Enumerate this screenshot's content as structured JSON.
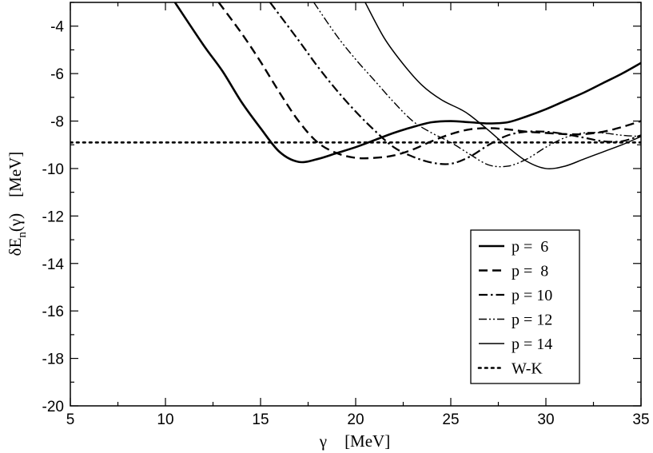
{
  "chart_data": {
    "type": "line",
    "title": "",
    "xlabel": {
      "symbol": "γ",
      "unit": "[MeV]"
    },
    "ylabel": {
      "base": "δE",
      "sub": "n",
      "arg": "(γ)",
      "unit": "[MeV]"
    },
    "xlim": [
      5,
      35
    ],
    "ylim": [
      -20,
      -3
    ],
    "xticks": [
      5,
      10,
      15,
      20,
      25,
      30,
      35
    ],
    "yticks": [
      -20,
      -18,
      -16,
      -14,
      -12,
      -10,
      -8,
      -6,
      -4
    ],
    "grid": false,
    "legend_position": "bottom-right",
    "series": [
      {
        "name": "p =  6",
        "style": "solid-thick",
        "points": [
          [
            10.5,
            -3.0
          ],
          [
            12,
            -4.8
          ],
          [
            13,
            -5.9
          ],
          [
            14,
            -7.2
          ],
          [
            15,
            -8.3
          ],
          [
            16,
            -9.3
          ],
          [
            17,
            -9.72
          ],
          [
            18,
            -9.6
          ],
          [
            19,
            -9.35
          ],
          [
            20,
            -9.1
          ],
          [
            21,
            -8.8
          ],
          [
            22,
            -8.5
          ],
          [
            23,
            -8.25
          ],
          [
            24,
            -8.05
          ],
          [
            25,
            -8.0
          ],
          [
            26,
            -8.05
          ],
          [
            27,
            -8.1
          ],
          [
            28,
            -8.05
          ],
          [
            29,
            -7.8
          ],
          [
            30,
            -7.5
          ],
          [
            31,
            -7.15
          ],
          [
            32,
            -6.8
          ],
          [
            33,
            -6.4
          ],
          [
            34,
            -6.0
          ],
          [
            35,
            -5.55
          ]
        ]
      },
      {
        "name": "p =  8",
        "style": "dashed-thick",
        "points": [
          [
            12.8,
            -3.0
          ],
          [
            14,
            -4.3
          ],
          [
            15,
            -5.5
          ],
          [
            16,
            -6.8
          ],
          [
            17,
            -8.0
          ],
          [
            18,
            -8.9
          ],
          [
            19,
            -9.35
          ],
          [
            20,
            -9.55
          ],
          [
            21,
            -9.55
          ],
          [
            22,
            -9.45
          ],
          [
            23,
            -9.2
          ],
          [
            24,
            -8.85
          ],
          [
            25,
            -8.55
          ],
          [
            26,
            -8.35
          ],
          [
            27,
            -8.3
          ],
          [
            28,
            -8.35
          ],
          [
            29,
            -8.45
          ],
          [
            30,
            -8.5
          ],
          [
            31,
            -8.55
          ],
          [
            32,
            -8.55
          ],
          [
            33,
            -8.45
          ],
          [
            34,
            -8.25
          ],
          [
            35,
            -8.0
          ]
        ]
      },
      {
        "name": "p = 10",
        "style": "dashdot-thick",
        "points": [
          [
            15.5,
            -3.0
          ],
          [
            17,
            -4.6
          ],
          [
            18,
            -5.7
          ],
          [
            19,
            -6.7
          ],
          [
            20,
            -7.6
          ],
          [
            21,
            -8.4
          ],
          [
            22,
            -9.1
          ],
          [
            23,
            -9.5
          ],
          [
            24,
            -9.75
          ],
          [
            25,
            -9.8
          ],
          [
            26,
            -9.5
          ],
          [
            27,
            -9.0
          ],
          [
            28,
            -8.6
          ],
          [
            29,
            -8.45
          ],
          [
            30,
            -8.45
          ],
          [
            31,
            -8.55
          ],
          [
            32,
            -8.7
          ],
          [
            33,
            -8.85
          ],
          [
            34,
            -8.85
          ],
          [
            35,
            -8.6
          ]
        ]
      },
      {
        "name": "p = 12",
        "style": "dashdotdot-thin",
        "points": [
          [
            17.8,
            -3.0
          ],
          [
            19,
            -4.4
          ],
          [
            20,
            -5.4
          ],
          [
            21,
            -6.3
          ],
          [
            22,
            -7.2
          ],
          [
            23,
            -8.0
          ],
          [
            24,
            -8.5
          ],
          [
            25,
            -8.9
          ],
          [
            26,
            -9.4
          ],
          [
            27,
            -9.85
          ],
          [
            28,
            -9.9
          ],
          [
            29,
            -9.6
          ],
          [
            30,
            -9.1
          ],
          [
            31,
            -8.7
          ],
          [
            32,
            -8.5
          ],
          [
            33,
            -8.5
          ],
          [
            34,
            -8.6
          ],
          [
            35,
            -8.65
          ]
        ]
      },
      {
        "name": "p = 14",
        "style": "solid-thin",
        "points": [
          [
            20.5,
            -3.0
          ],
          [
            21.5,
            -4.5
          ],
          [
            22.5,
            -5.6
          ],
          [
            23.5,
            -6.5
          ],
          [
            24.5,
            -7.1
          ],
          [
            25.5,
            -7.5
          ],
          [
            26,
            -7.75
          ],
          [
            27,
            -8.4
          ],
          [
            28,
            -9.1
          ],
          [
            29,
            -9.7
          ],
          [
            30,
            -10.0
          ],
          [
            31,
            -9.9
          ],
          [
            32,
            -9.6
          ],
          [
            33,
            -9.3
          ],
          [
            34,
            -9.0
          ],
          [
            35,
            -8.65
          ]
        ]
      },
      {
        "name": "W-K",
        "style": "dotted-thick",
        "points": [
          [
            5,
            -8.9
          ],
          [
            35,
            -8.9
          ]
        ]
      }
    ]
  }
}
